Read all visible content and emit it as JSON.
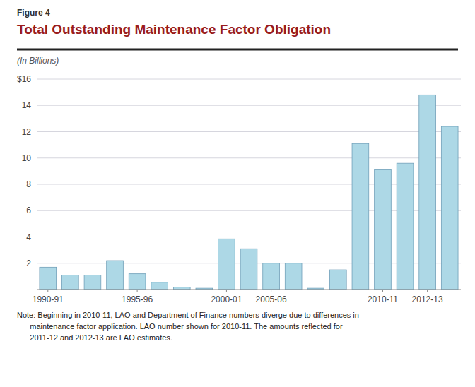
{
  "chart_data": {
    "type": "bar",
    "title": "Total Outstanding Maintenance Factor Obligation",
    "subtitle": "(In Billions)",
    "annotations": [
      "Figure 4",
      "Note: Beginning in 2010-11, LAO and Department of Finance numbers diverge due to differences in\n      maintenance factor application. LAO number shown for 2010-11. The amounts reflected for\n      2011-12 and 2012-13 are LAO estimates."
    ],
    "categories": [
      "1990-91",
      null,
      null,
      null,
      "1995-96",
      null,
      null,
      null,
      "2000-01",
      null,
      "2005-06",
      null,
      null,
      null,
      null,
      "2010-11",
      null,
      "2012-13",
      null
    ],
    "values": [
      1.7,
      1.1,
      1.1,
      2.2,
      1.2,
      0.55,
      0.18,
      0.1,
      3.85,
      3.1,
      2.0,
      2.0,
      0.1,
      1.5,
      11.1,
      9.1,
      9.6,
      14.8,
      12.4
    ],
    "color": "#ADD8E6",
    "ylim": [
      0,
      16
    ],
    "yticks": [
      2,
      4,
      6,
      8,
      10,
      12,
      14,
      {
        "value": 16,
        "label": "$16"
      }
    ],
    "grid": true
  }
}
